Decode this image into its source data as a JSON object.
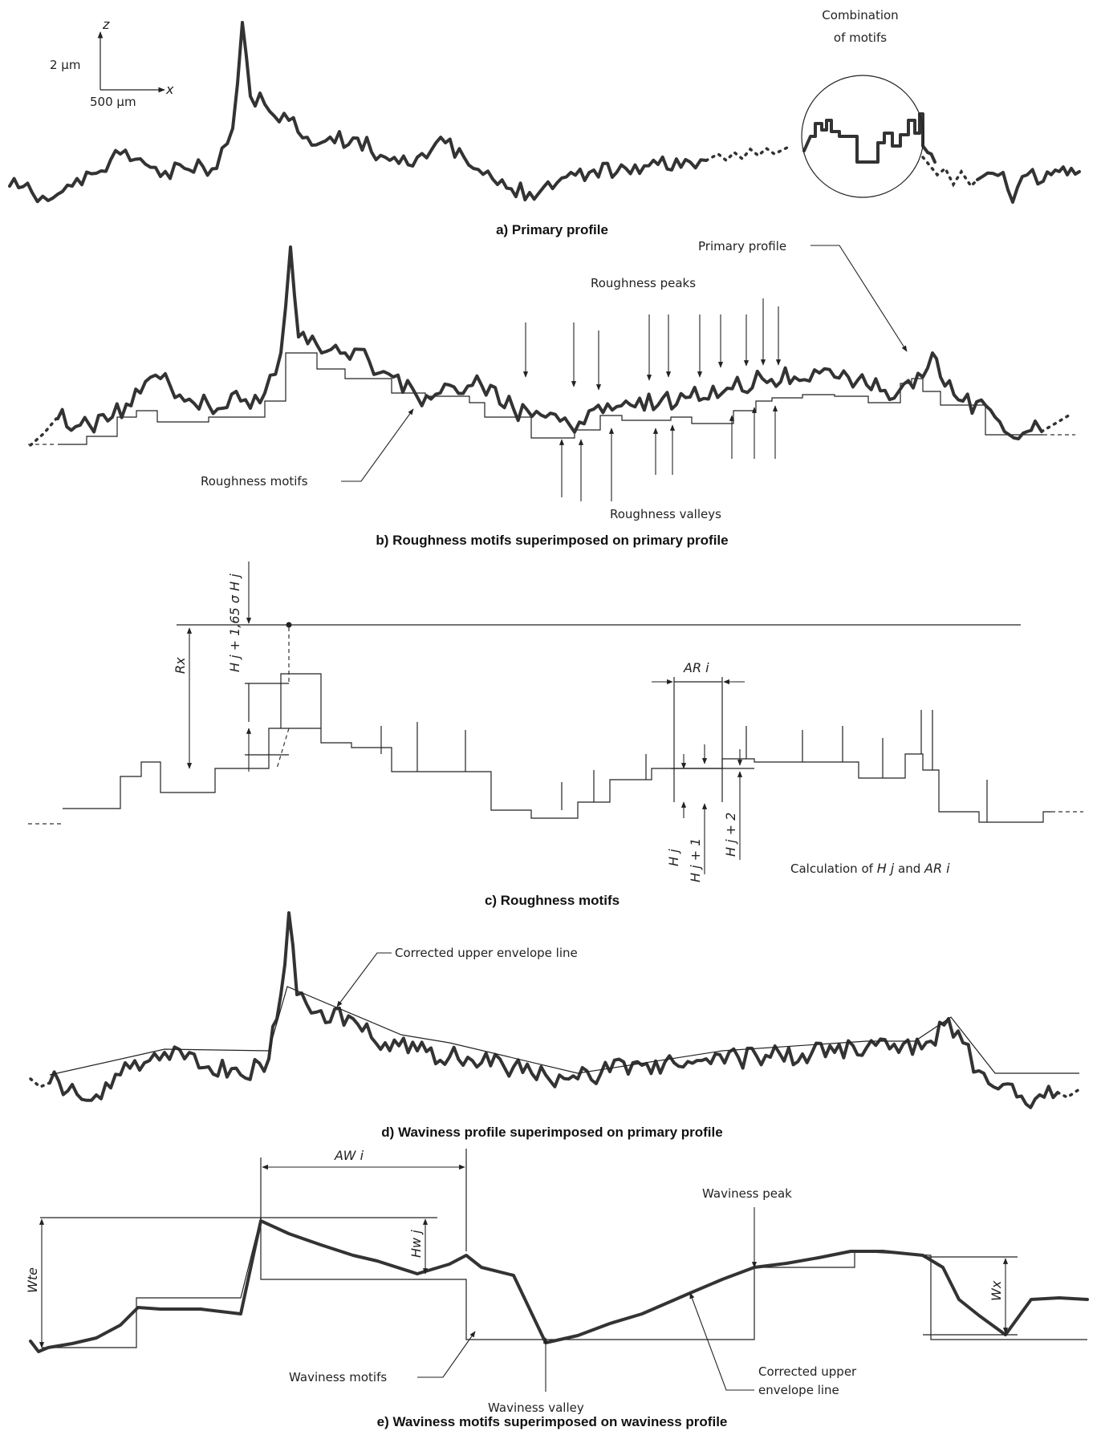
{
  "axes": {
    "z_label": "z",
    "x_label": "x",
    "z_scale": "2 µm",
    "x_scale": "500 µm"
  },
  "panel_a": {
    "caption": "a) Primary profile",
    "combination_label_line1": "Combination",
    "combination_label_line2": "of motifs"
  },
  "panel_b": {
    "caption": "b) Roughness motifs superimposed on primary profile",
    "primary_profile": "Primary profile",
    "roughness_peaks": "Roughness peaks",
    "roughness_motifs": "Roughness motifs",
    "roughness_valleys": "Roughness valleys"
  },
  "panel_c": {
    "caption": "c) Roughness motifs",
    "threshold_label": "H j + 1,65 σ H j",
    "rx": "Rx",
    "ar_i": "AR i",
    "h_j": "H j",
    "h_j1": "H j + 1",
    "h_j2": "H j + 2",
    "calc_prefix": "Calculation of ",
    "calc_hj": "H j",
    "calc_and": " and ",
    "calc_ari": "AR i"
  },
  "panel_d": {
    "caption": "d) Waviness profile superimposed on primary profile",
    "envelope": "Corrected upper envelope line"
  },
  "panel_e": {
    "caption": "e) Waviness motifs superimposed on waviness profile",
    "aw_i": "AW i",
    "wte": "Wte",
    "hw_j": "Hw j",
    "wx": "Wx",
    "waviness_peak": "Waviness peak",
    "waviness_motifs": "Waviness motifs",
    "waviness_valley": "Waviness valley",
    "envelope_line1": "Corrected upper",
    "envelope_line2": "envelope line"
  }
}
